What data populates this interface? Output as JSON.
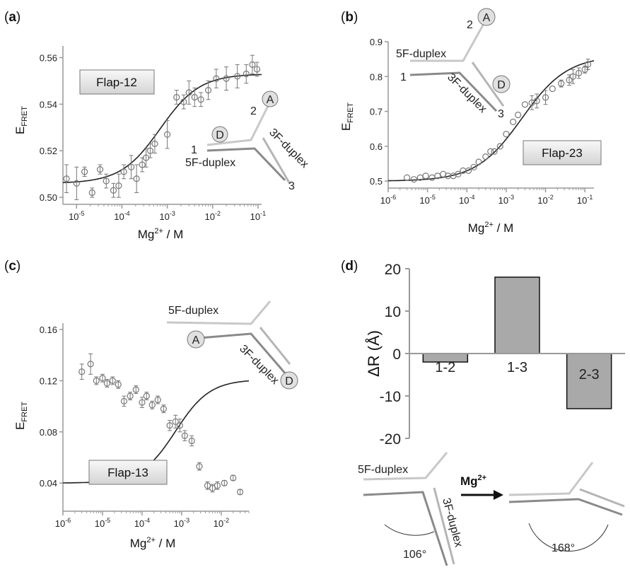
{
  "panels": {
    "a": {
      "label_open": "(",
      "letter": "a",
      "label_close": ")",
      "box_label": "Flap-12",
      "xlabel": "Mg",
      "xlabel_sup": "2+",
      "xlabel_tail": " / M",
      "ylabel_main": "E",
      "ylabel_sub": "FRET"
    },
    "b": {
      "label_open": "(",
      "letter": "b",
      "label_close": ")",
      "box_label": "Flap-23",
      "xlabel": "Mg",
      "xlabel_sup": "2+",
      "xlabel_tail": " / M",
      "ylabel_main": "E",
      "ylabel_sub": "FRET"
    },
    "c": {
      "label_open": "(",
      "letter": "c",
      "label_close": ")",
      "box_label": "Flap-13",
      "xlabel": "Mg",
      "xlabel_sup": "2+",
      "xlabel_tail": " / M",
      "ylabel_main": "E",
      "ylabel_sub": "FRET"
    },
    "d": {
      "label_open": "(",
      "letter": "d",
      "label_close": ")",
      "ylabel": "ΔR (Å)"
    }
  },
  "insets": {
    "a": {
      "arm1": "1",
      "arm2": "2",
      "arm3": "3",
      "duplex5": "5F-duplex",
      "duplex3": "3F-duplex",
      "donor": "D",
      "acceptor": "A"
    },
    "b": {
      "arm1": "1",
      "arm2": "2",
      "arm3": "3",
      "duplex5": "5F-duplex",
      "duplex3": "3F-duplex",
      "donor": "D",
      "acceptor": "A"
    },
    "c": {
      "duplex5": "5F-duplex",
      "duplex3": "3F-duplex",
      "donor": "D",
      "acceptor": "A"
    },
    "d": {
      "duplex5": "5F-duplex",
      "duplex3": "3F-duplex",
      "arrow_label": "Mg",
      "arrow_sup": "2+",
      "angle_before": "106°",
      "angle_after": "168°"
    }
  },
  "chart_data": [
    {
      "panel": "a",
      "type": "scatter",
      "x_scale": "log",
      "xlim": [
        5e-06,
        0.12
      ],
      "ylim": [
        0.497,
        0.565
      ],
      "x_ticks": [
        1e-05,
        0.0001,
        0.001,
        0.01,
        0.1
      ],
      "x_tick_labels": [
        [
          "10",
          "-5"
        ],
        [
          "10",
          "-4"
        ],
        [
          "10",
          "-3"
        ],
        [
          "10",
          "-2"
        ],
        [
          "10",
          "-1"
        ]
      ],
      "y_ticks": [
        0.5,
        0.52,
        0.54,
        0.56
      ],
      "y_tick_labels": [
        "0.50",
        "0.52",
        "0.54",
        "0.56"
      ],
      "x": [
        6e-06,
        1e-05,
        1.5e-05,
        2.2e-05,
        3.3e-05,
        4.5e-05,
        6.5e-05,
        8.5e-05,
        0.00011,
        0.00016,
        0.00021,
        0.00028,
        0.00034,
        0.00042,
        0.00053,
        0.001,
        0.0016,
        0.0023,
        0.003,
        0.004,
        0.0055,
        0.008,
        0.012,
        0.02,
        0.035,
        0.055,
        0.075,
        0.095
      ],
      "y": [
        0.508,
        0.506,
        0.511,
        0.502,
        0.512,
        0.507,
        0.503,
        0.505,
        0.511,
        0.513,
        0.508,
        0.514,
        0.517,
        0.52,
        0.523,
        0.527,
        0.543,
        0.541,
        0.545,
        0.543,
        0.542,
        0.546,
        0.551,
        0.551,
        0.552,
        0.553,
        0.557,
        0.555
      ],
      "err": [
        0.006,
        0.007,
        0.002,
        0.002,
        0.002,
        0.003,
        0.003,
        0.005,
        0.003,
        0.005,
        0.006,
        0.003,
        0.004,
        0.003,
        0.004,
        0.006,
        0.003,
        0.003,
        0.005,
        0.004,
        0.003,
        0.004,
        0.004,
        0.005,
        0.005,
        0.004,
        0.004,
        0.003
      ],
      "fit": {
        "kind": "hill",
        "bottom": 0.506,
        "top": 0.553,
        "x50": 0.0007,
        "slope": 1
      }
    },
    {
      "panel": "b",
      "type": "scatter",
      "x_scale": "log",
      "xlim": [
        1e-06,
        0.17
      ],
      "ylim": [
        0.48,
        0.9
      ],
      "x_ticks": [
        1e-06,
        1e-05,
        0.0001,
        0.001,
        0.01,
        0.1
      ],
      "x_tick_labels": [
        [
          "10",
          "-6"
        ],
        [
          "10",
          "-5"
        ],
        [
          "10",
          "-4"
        ],
        [
          "10",
          "-3"
        ],
        [
          "10",
          "-2"
        ],
        [
          "10",
          "-1"
        ]
      ],
      "y_ticks": [
        0.5,
        0.6,
        0.7,
        0.8,
        0.9
      ],
      "y_tick_labels": [
        "0.5",
        "0.6",
        "0.7",
        "0.8",
        "0.9"
      ],
      "x": [
        3e-06,
        4.5e-06,
        6.5e-06,
        9e-06,
        1.3e-05,
        1.8e-05,
        2.5e-05,
        3.3e-05,
        4.5e-05,
        6e-05,
        8e-05,
        0.00011,
        0.00015,
        0.0002,
        0.0003,
        0.0004,
        0.0005,
        0.0007,
        0.001,
        0.0015,
        0.002,
        0.003,
        0.0045,
        0.006,
        0.01,
        0.015,
        0.025,
        0.04,
        0.05,
        0.07,
        0.1,
        0.12
      ],
      "y": [
        0.51,
        0.505,
        0.51,
        0.515,
        0.51,
        0.515,
        0.52,
        0.515,
        0.515,
        0.52,
        0.53,
        0.53,
        0.54,
        0.555,
        0.57,
        0.585,
        0.585,
        0.6,
        0.635,
        0.67,
        0.69,
        0.72,
        0.725,
        0.73,
        0.74,
        0.765,
        0.78,
        0.79,
        0.8,
        0.81,
        0.82,
        0.835
      ],
      "err": [
        0,
        0,
        0,
        0,
        0,
        0,
        0,
        0,
        0,
        0,
        0,
        0,
        0,
        0,
        0,
        0,
        0,
        0,
        0,
        0,
        0,
        0,
        0.02,
        0.02,
        0.02,
        0,
        0.01,
        0.015,
        0.02,
        0.015,
        0.01,
        0.015
      ],
      "fit": {
        "kind": "hill",
        "bottom": 0.5,
        "top": 0.86,
        "x50": 0.0025,
        "slope": 0.75
      }
    },
    {
      "panel": "c",
      "type": "scatter",
      "x_scale": "log",
      "xlim": [
        1e-06,
        0.05
      ],
      "ylim": [
        0.018,
        0.165
      ],
      "x_ticks": [
        1e-06,
        1e-05,
        0.0001,
        0.001,
        0.01
      ],
      "x_tick_labels": [
        [
          "10",
          "-6"
        ],
        [
          "10",
          "-5"
        ],
        [
          "10",
          "-4"
        ],
        [
          "10",
          "-3"
        ],
        [
          "10",
          "-2"
        ]
      ],
      "y_ticks": [
        0.04,
        0.08,
        0.12,
        0.16
      ],
      "y_tick_labels": [
        "0.04",
        "0.08",
        "0.12",
        "0.16"
      ],
      "x": [
        3e-06,
        5e-06,
        7e-06,
        1e-05,
        1.3e-05,
        1.8e-05,
        2.5e-05,
        3.5e-05,
        5e-05,
        7e-05,
        0.0001,
        0.00013,
        0.00018,
        0.00025,
        0.00035,
        0.0005,
        0.0007,
        0.0009,
        0.0012,
        0.0018,
        0.0028,
        0.0045,
        0.006,
        0.008,
        0.012,
        0.02,
        0.03
      ],
      "y": [
        0.127,
        0.133,
        0.12,
        0.122,
        0.118,
        0.12,
        0.117,
        0.104,
        0.108,
        0.113,
        0.103,
        0.108,
        0.101,
        0.105,
        0.098,
        0.085,
        0.088,
        0.085,
        0.077,
        0.073,
        0.053,
        0.038,
        0.036,
        0.038,
        0.04,
        0.044,
        0.033
      ],
      "err": [
        0.006,
        0.008,
        0.003,
        0.003,
        0.003,
        0.003,
        0.003,
        0.004,
        0.003,
        0.003,
        0.004,
        0.003,
        0.003,
        0.003,
        0.003,
        0.004,
        0.005,
        0.005,
        0.004,
        0.004,
        0.003,
        0.003,
        0.003,
        0.003,
        0.002,
        0.002,
        0.002
      ],
      "fit": {
        "kind": "hill",
        "bottom": 0.04,
        "top": 0.121,
        "x50": 0.0007,
        "slope": 1
      }
    },
    {
      "panel": "d",
      "type": "bar",
      "categories": [
        "1-2",
        "1-3",
        "2-3"
      ],
      "values": [
        -2,
        18,
        -13
      ],
      "ylim": [
        -20,
        20
      ],
      "y_ticks": [
        -20,
        -10,
        0,
        10,
        20
      ],
      "y_tick_labels": [
        "-20",
        "-10",
        "0",
        "10",
        "20"
      ],
      "bar_color": "#a9a9a9"
    }
  ],
  "colors": {
    "data": "#777777",
    "fit": "#222222",
    "axis": "#999999",
    "arm_light": "#bcbcbc",
    "arm_dark": "#8a8a8a",
    "box_fill": "#e6e6e6"
  }
}
